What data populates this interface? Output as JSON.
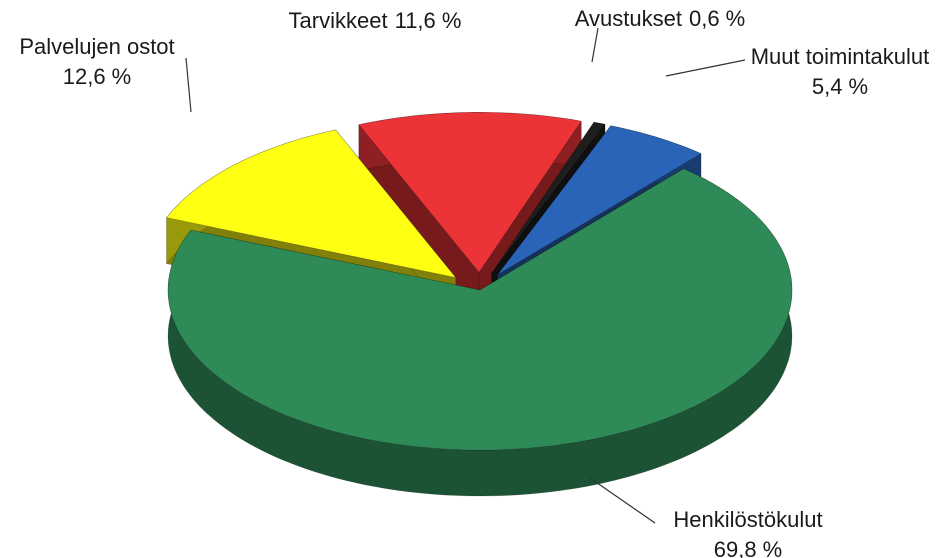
{
  "chart_data": {
    "type": "pie3d",
    "categories": [
      "Henkilöstökulut",
      "Palvelujen ostot",
      "Tarvikkeet",
      "Avustukset",
      "Muut toimintakulut"
    ],
    "values": [
      69.8,
      12.6,
      11.6,
      0.6,
      5.4
    ],
    "value_labels": [
      "69,8 %",
      "12,6 %",
      "11,6 %",
      "0,6 %",
      "5,4 %"
    ],
    "colors": [
      "#2e8b57",
      "#ffff14",
      "#ec3438",
      "#1e1e1e",
      "#2a64b8"
    ]
  }
}
